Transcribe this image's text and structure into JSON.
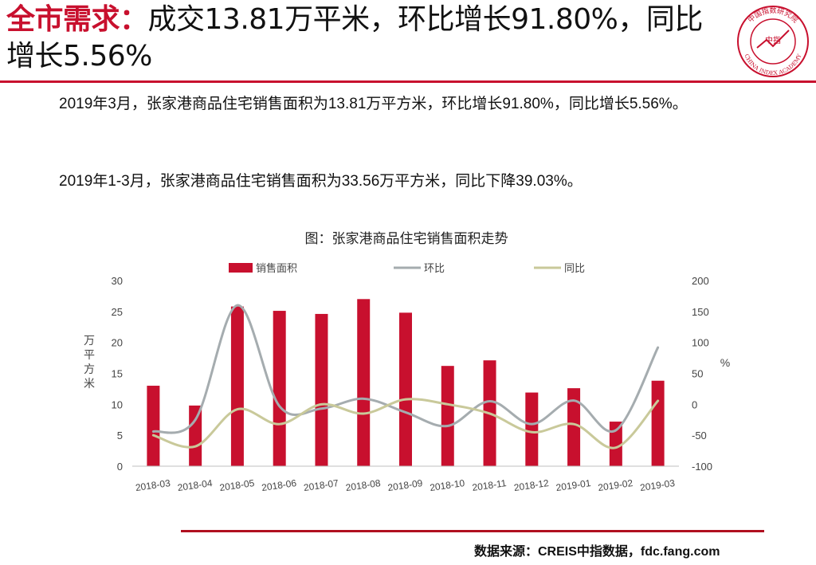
{
  "header": {
    "title_strong": "全市需求：",
    "title_rest": "成交13.81万平米，环比增长91.80%，同比增长5.56%",
    "logo_text": "中国指数研究院",
    "logo_text_en": "CHINA INDEX ACADEMY",
    "logo_center": "中指"
  },
  "body": {
    "paragraph1": "2019年3月，张家港商品住宅销售面积为13.81万平方米，环比增长91.80%，同比增长5.56%。",
    "paragraph2": "2019年1-3月，张家港商品住宅销售面积为33.56万平方米，同比下降39.03%。"
  },
  "chart_data": {
    "type": "bar",
    "title": "图：张家港商品住宅销售面积走势",
    "categories": [
      "2018-03",
      "2018-04",
      "2018-05",
      "2018-06",
      "2018-07",
      "2018-08",
      "2018-09",
      "2018-10",
      "2018-11",
      "2018-12",
      "2019-01",
      "2019-02",
      "2019-03"
    ],
    "series": [
      {
        "name": "销售面积",
        "type": "bar",
        "axis": "left",
        "color": "#c8102e",
        "values": [
          13.0,
          9.8,
          25.8,
          25.1,
          24.6,
          27.0,
          24.8,
          16.2,
          17.1,
          11.9,
          12.6,
          7.2,
          13.81
        ]
      },
      {
        "name": "环比",
        "type": "line",
        "axis": "right",
        "color": "#a5acaf",
        "values": [
          -44,
          -25,
          160,
          -3,
          -7,
          9,
          -13,
          -35,
          5,
          -32,
          6,
          -42,
          91.8
        ]
      },
      {
        "name": "同比",
        "type": "line",
        "axis": "right",
        "color": "#c9c99a",
        "values": [
          -50,
          -68,
          -8,
          -32,
          0,
          -15,
          8,
          0,
          -15,
          -45,
          -32,
          -70,
          5.56
        ]
      }
    ],
    "ylabel": "万平方米",
    "y2label": "%",
    "ylim": [
      0,
      30
    ],
    "y2lim": [
      -100,
      200
    ],
    "yticks": [
      0,
      5,
      10,
      15,
      20,
      25,
      30
    ],
    "y2ticks": [
      -100,
      -50,
      0,
      50,
      100,
      150,
      200
    ],
    "legend": "top",
    "grid": false
  },
  "footer": {
    "source": "数据来源：CREIS中指数据，fdc.fang.com"
  }
}
